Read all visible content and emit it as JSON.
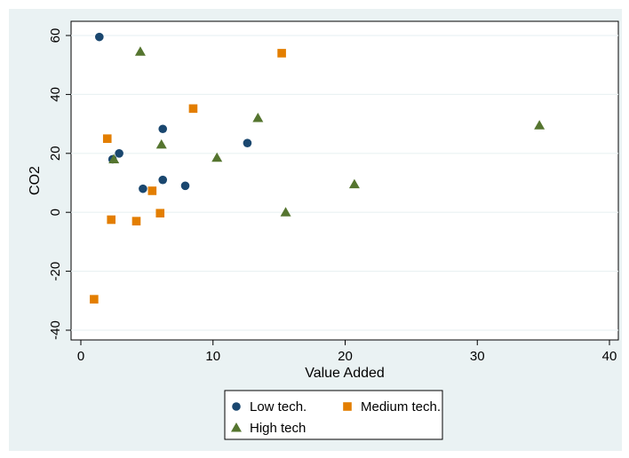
{
  "chart_data": {
    "type": "scatter",
    "title": "",
    "xlabel": "Value Added",
    "ylabel": "CO2",
    "xlim": [
      0,
      40
    ],
    "ylim": [
      -40,
      60
    ],
    "xticks": [
      "0",
      "10",
      "20",
      "30",
      "40"
    ],
    "yticks": [
      "-40",
      "-20",
      "0",
      "20",
      "40",
      "60"
    ],
    "grid": "horizontal",
    "legend_position": "bottom",
    "series": [
      {
        "name": "Low tech.",
        "marker": "circle",
        "color": "#1a476f",
        "points": [
          [
            1.4,
            59.5
          ],
          [
            2.4,
            18.0
          ],
          [
            2.9,
            20.0
          ],
          [
            4.7,
            8.0
          ],
          [
            6.2,
            28.3
          ],
          [
            6.2,
            11.0
          ],
          [
            7.9,
            9.0
          ],
          [
            12.6,
            23.5
          ]
        ]
      },
      {
        "name": "Medium tech.",
        "marker": "square",
        "color": "#e37e00",
        "points": [
          [
            1.0,
            -29.5
          ],
          [
            2.0,
            25.0
          ],
          [
            2.3,
            -2.5
          ],
          [
            4.2,
            -3.0
          ],
          [
            5.4,
            7.3
          ],
          [
            6.0,
            -0.3
          ],
          [
            8.5,
            35.2
          ],
          [
            15.2,
            54.0
          ]
        ]
      },
      {
        "name": "High tech",
        "marker": "triangle",
        "color": "#55752f",
        "points": [
          [
            2.5,
            18.0
          ],
          [
            4.5,
            54.5
          ],
          [
            6.1,
            23.0
          ],
          [
            10.3,
            18.5
          ],
          [
            13.4,
            32.0
          ],
          [
            15.5,
            0.0
          ],
          [
            20.7,
            9.5
          ],
          [
            34.7,
            29.5
          ]
        ]
      }
    ]
  }
}
